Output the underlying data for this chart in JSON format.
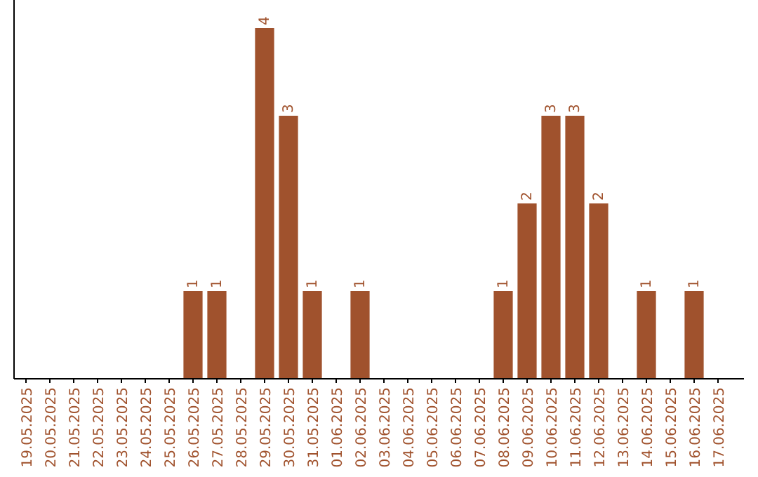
{
  "chart_data": {
    "type": "bar",
    "categories": [
      "19.05.2025",
      "20.05.2025",
      "21.05.2025",
      "22.05.2025",
      "23.05.2025",
      "24.05.2025",
      "25.05.2025",
      "26.05.2025",
      "27.05.2025",
      "28.05.2025",
      "29.05.2025",
      "30.05.2025",
      "31.05.2025",
      "01.06.2025",
      "02.06.2025",
      "03.06.2025",
      "04.06.2025",
      "05.06.2025",
      "06.06.2025",
      "07.06.2025",
      "08.06.2025",
      "09.06.2025",
      "10.06.2025",
      "11.06.2025",
      "12.06.2025",
      "13.06.2025",
      "14.06.2025",
      "15.06.2025",
      "16.06.2025",
      "17.06.2025"
    ],
    "values": [
      0,
      0,
      0,
      0,
      0,
      0,
      0,
      1,
      1,
      0,
      4,
      3,
      1,
      0,
      1,
      0,
      0,
      0,
      0,
      0,
      1,
      2,
      3,
      3,
      2,
      0,
      1,
      0,
      1,
      0
    ],
    "value_labels": [
      null,
      null,
      null,
      null,
      null,
      null,
      null,
      "1",
      "1",
      null,
      "4",
      "3",
      "1",
      null,
      "1",
      null,
      null,
      null,
      null,
      null,
      "1",
      "2",
      "3",
      "3",
      "2",
      null,
      "1",
      null,
      "1",
      null
    ],
    "color": "#a0522d",
    "grid": false
  }
}
